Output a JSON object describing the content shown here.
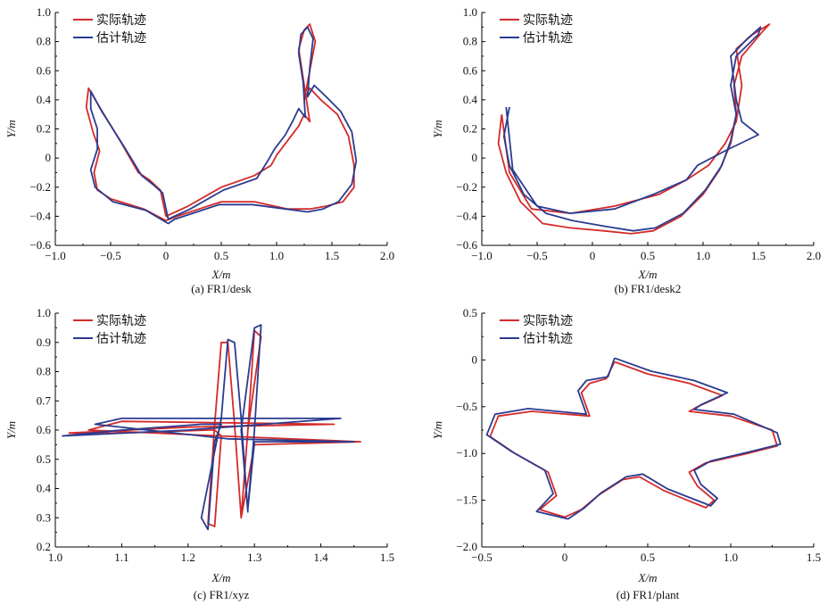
{
  "colors": {
    "actual": "#d42a2a",
    "estimated": "#2b3b8f"
  },
  "chart_data": [
    {
      "type": "line",
      "caption": "(a) FR1/desk",
      "xlabel": "X/m",
      "ylabel": "Y/m",
      "xlim": [
        -1.0,
        2.0
      ],
      "ylim": [
        -0.6,
        1.0
      ],
      "xticks": [
        "−1.0",
        "−0.5",
        "0",
        "0.5",
        "1.0",
        "1.5",
        "2.0"
      ],
      "yticks": [
        "−0.6",
        "−0.4",
        "−0.2",
        "0",
        "0.2",
        "0.4",
        "0.6",
        "0.8",
        "1.0"
      ],
      "legend": "top-left",
      "series": [
        {
          "name": "实际轨迹",
          "color": "actual",
          "x": [
            0.95,
            1.0,
            1.1,
            1.2,
            1.25,
            1.3,
            1.25,
            1.2,
            1.25,
            1.3,
            1.35,
            1.3,
            1.25,
            1.3,
            1.4,
            1.55,
            1.65,
            1.7,
            1.7,
            1.6,
            1.45,
            1.3,
            1.1,
            0.8,
            0.5,
            0.3,
            0.1,
            0.0,
            -0.2,
            -0.5,
            -0.62,
            -0.65,
            -0.6,
            -0.66,
            -0.72,
            -0.7,
            -0.6,
            -0.4,
            -0.25,
            -0.15,
            -0.05,
            0.0,
            0.2,
            0.5,
            0.8,
            0.95
          ],
          "y": [
            -0.05,
            0.02,
            0.12,
            0.22,
            0.3,
            0.25,
            0.5,
            0.75,
            0.88,
            0.92,
            0.8,
            0.6,
            0.4,
            0.48,
            0.4,
            0.3,
            0.15,
            -0.05,
            -0.2,
            -0.3,
            -0.33,
            -0.35,
            -0.35,
            -0.3,
            -0.3,
            -0.35,
            -0.4,
            -0.43,
            -0.35,
            -0.28,
            -0.22,
            -0.1,
            0.05,
            0.18,
            0.35,
            0.48,
            0.35,
            0.1,
            -0.1,
            -0.15,
            -0.22,
            -0.4,
            -0.33,
            -0.2,
            -0.12,
            -0.05
          ]
        },
        {
          "name": "估计轨迹",
          "color": "estimated",
          "x": [
            0.92,
            0.98,
            1.08,
            1.15,
            1.2,
            1.26,
            1.24,
            1.2,
            1.22,
            1.28,
            1.33,
            1.3,
            1.28,
            1.34,
            1.45,
            1.58,
            1.68,
            1.72,
            1.68,
            1.56,
            1.42,
            1.28,
            1.08,
            0.78,
            0.48,
            0.28,
            0.08,
            0.02,
            -0.18,
            -0.48,
            -0.64,
            -0.68,
            -0.62,
            -0.62,
            -0.68,
            -0.68,
            -0.58,
            -0.38,
            -0.22,
            -0.12,
            -0.03,
            0.02,
            0.22,
            0.52,
            0.82,
            0.92
          ],
          "y": [
            -0.02,
            0.06,
            0.16,
            0.26,
            0.34,
            0.28,
            0.52,
            0.72,
            0.85,
            0.9,
            0.82,
            0.62,
            0.42,
            0.5,
            0.42,
            0.32,
            0.18,
            -0.02,
            -0.18,
            -0.3,
            -0.35,
            -0.37,
            -0.35,
            -0.32,
            -0.32,
            -0.37,
            -0.42,
            -0.45,
            -0.36,
            -0.3,
            -0.2,
            -0.08,
            0.06,
            0.2,
            0.34,
            0.46,
            0.32,
            0.08,
            -0.12,
            -0.18,
            -0.24,
            -0.42,
            -0.35,
            -0.22,
            -0.14,
            -0.02
          ]
        }
      ]
    },
    {
      "type": "line",
      "caption": "(b) FR1/desk2",
      "xlabel": "X/m",
      "ylabel": "Y/m",
      "xlim": [
        -1.0,
        2.0
      ],
      "ylim": [
        -0.6,
        1.0
      ],
      "xticks": [
        "−1.0",
        "−0.5",
        "0",
        "0.5",
        "1.0",
        "1.5",
        "2.0"
      ],
      "yticks": [
        "−0.6",
        "−0.4",
        "−0.2",
        "0",
        "0.2",
        "0.4",
        "0.6",
        "0.8",
        "1.0"
      ],
      "legend": "top-left",
      "series": [
        {
          "name": "实际轨迹",
          "color": "actual",
          "x": [
            -0.82,
            -0.85,
            -0.78,
            -0.65,
            -0.45,
            -0.2,
            0.1,
            0.35,
            0.55,
            0.8,
            1.0,
            1.15,
            1.25,
            1.3,
            1.28,
            1.35,
            1.55,
            1.6,
            1.45,
            1.3,
            1.35,
            1.3,
            1.2,
            1.05,
            0.85,
            0.6,
            0.2,
            -0.2,
            -0.55,
            -0.75,
            -0.82
          ],
          "y": [
            0.3,
            0.1,
            -0.1,
            -0.3,
            -0.45,
            -0.48,
            -0.5,
            -0.52,
            -0.5,
            -0.4,
            -0.25,
            -0.08,
            0.1,
            0.3,
            0.5,
            0.7,
            0.88,
            0.92,
            0.85,
            0.75,
            0.5,
            0.25,
            0.1,
            -0.05,
            -0.15,
            -0.25,
            -0.33,
            -0.38,
            -0.35,
            -0.1,
            0.3
          ]
        },
        {
          "name": "估计轨迹",
          "color": "estimated",
          "x": [
            -0.75,
            -0.8,
            -0.75,
            -0.62,
            -0.42,
            -0.18,
            0.12,
            0.37,
            0.57,
            0.82,
            1.02,
            1.17,
            1.25,
            1.3,
            1.25,
            1.3,
            1.5,
            1.52,
            1.4,
            1.25,
            1.3,
            1.35,
            1.5,
            1.2,
            0.95,
            0.85,
            0.55,
            0.2,
            -0.2,
            -0.5,
            -0.72,
            -0.78
          ],
          "y": [
            0.35,
            0.15,
            -0.05,
            -0.25,
            -0.38,
            -0.43,
            -0.47,
            -0.5,
            -0.48,
            -0.38,
            -0.22,
            -0.05,
            0.12,
            0.3,
            0.5,
            0.7,
            0.85,
            0.9,
            0.82,
            0.7,
            0.4,
            0.25,
            0.16,
            0.05,
            -0.05,
            -0.15,
            -0.25,
            -0.35,
            -0.38,
            -0.33,
            -0.08,
            0.35
          ]
        }
      ]
    },
    {
      "type": "line",
      "caption": "(c) FR1/xyz",
      "xlabel": "X/m",
      "ylabel": "Y/m",
      "xlim": [
        1.0,
        1.5
      ],
      "ylim": [
        0.2,
        1.0
      ],
      "xticks": [
        "1.0",
        "1.1",
        "1.2",
        "1.3",
        "1.4",
        "1.5"
      ],
      "yticks": [
        "0.2",
        "0.3",
        "0.4",
        "0.5",
        "0.6",
        "0.7",
        "0.8",
        "0.9",
        "1.0"
      ],
      "legend": "top-left",
      "series": [
        {
          "name": "实际轨迹",
          "color": "actual",
          "x": [
            1.02,
            1.2,
            1.42,
            1.1,
            1.05,
            1.25,
            1.46,
            1.3,
            1.28,
            1.29,
            1.3,
            1.31,
            1.29,
            1.28,
            1.27,
            1.26,
            1.25,
            1.24,
            1.23,
            1.24,
            1.25,
            1.24,
            1.23,
            1.1,
            1.02
          ],
          "y": [
            0.59,
            0.61,
            0.62,
            0.63,
            0.6,
            0.58,
            0.56,
            0.55,
            0.3,
            0.6,
            0.94,
            0.92,
            0.6,
            0.3,
            0.62,
            0.9,
            0.9,
            0.62,
            0.28,
            0.27,
            0.58,
            0.6,
            0.6,
            0.59,
            0.59
          ]
        },
        {
          "name": "估计轨迹",
          "color": "estimated",
          "x": [
            1.01,
            1.2,
            1.43,
            1.1,
            1.06,
            1.26,
            1.45,
            1.3,
            1.29,
            1.3,
            1.31,
            1.3,
            1.28,
            1.29,
            1.28,
            1.27,
            1.26,
            1.25,
            1.22,
            1.23,
            1.24,
            1.25,
            1.22,
            1.1,
            1.01
          ],
          "y": [
            0.58,
            0.6,
            0.64,
            0.64,
            0.62,
            0.57,
            0.56,
            0.56,
            0.33,
            0.6,
            0.96,
            0.95,
            0.6,
            0.32,
            0.64,
            0.9,
            0.91,
            0.64,
            0.3,
            0.26,
            0.56,
            0.62,
            0.62,
            0.6,
            0.58
          ]
        }
      ]
    },
    {
      "type": "line",
      "caption": "(d) FR1/plant",
      "xlabel": "X/m",
      "ylabel": "Y/m",
      "xlim": [
        -0.5,
        1.5
      ],
      "ylim": [
        -2.0,
        0.5
      ],
      "xticks": [
        "−0.5",
        "0",
        "0.5",
        "1.0",
        "1.5"
      ],
      "yticks": [
        "−2.0",
        "−1.5",
        "−1.0",
        "−0.5",
        "0",
        "0.5"
      ],
      "legend": "top-left",
      "series": [
        {
          "name": "实际轨迹",
          "color": "actual",
          "x": [
            0.3,
            0.5,
            0.75,
            0.95,
            0.8,
            0.75,
            1.0,
            1.25,
            1.28,
            1.1,
            0.85,
            0.75,
            0.8,
            0.9,
            0.85,
            0.6,
            0.45,
            0.35,
            0.2,
            0.1,
            0.0,
            -0.15,
            -0.05,
            -0.1,
            -0.3,
            -0.45,
            -0.4,
            -0.2,
            0.15,
            0.1,
            0.15,
            0.25,
            0.3
          ],
          "y": [
            -0.02,
            -0.15,
            -0.25,
            -0.38,
            -0.5,
            -0.55,
            -0.6,
            -0.75,
            -0.92,
            -1.0,
            -1.1,
            -1.2,
            -1.35,
            -1.5,
            -1.58,
            -1.4,
            -1.25,
            -1.28,
            -1.45,
            -1.6,
            -1.68,
            -1.6,
            -1.45,
            -1.2,
            -1.0,
            -0.82,
            -0.6,
            -0.55,
            -0.6,
            -0.35,
            -0.25,
            -0.2,
            -0.02
          ]
        },
        {
          "name": "估计轨迹",
          "color": "estimated",
          "x": [
            0.3,
            0.52,
            0.78,
            0.98,
            0.82,
            0.78,
            1.02,
            1.28,
            1.3,
            1.12,
            0.88,
            0.78,
            0.82,
            0.92,
            0.88,
            0.62,
            0.47,
            0.37,
            0.22,
            0.12,
            0.02,
            -0.17,
            -0.07,
            -0.12,
            -0.32,
            -0.47,
            -0.42,
            -0.22,
            0.13,
            0.08,
            0.13,
            0.26,
            0.3
          ],
          "y": [
            0.02,
            -0.12,
            -0.22,
            -0.35,
            -0.48,
            -0.53,
            -0.58,
            -0.78,
            -0.9,
            -0.98,
            -1.08,
            -1.18,
            -1.33,
            -1.48,
            -1.56,
            -1.38,
            -1.22,
            -1.25,
            -1.42,
            -1.58,
            -1.7,
            -1.62,
            -1.43,
            -1.18,
            -0.98,
            -0.8,
            -0.58,
            -0.52,
            -0.58,
            -0.33,
            -0.22,
            -0.18,
            0.02
          ]
        }
      ]
    }
  ]
}
